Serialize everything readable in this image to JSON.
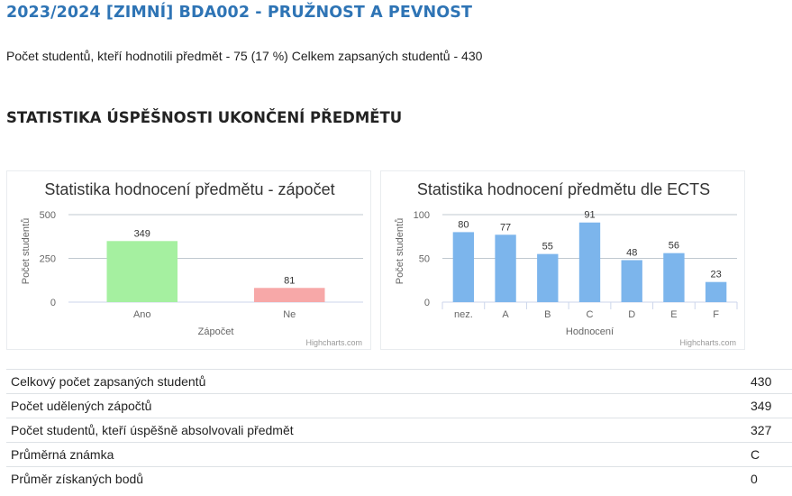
{
  "header": {
    "title": "2023/2024 [ZIMNÍ] BDA002 - PRUŽNOST A PEVNOST",
    "summary": "Počet studentů, kteří hodnotili předmět - 75 (17 %) Celkem zapsaných studentů - 430"
  },
  "section_title": "STATISTIKA ÚSPĚŠNOSTI UKONČENÍ PŘEDMĚTU",
  "colors": {
    "title_blue": "#2e74b5",
    "bar_green": "#a5f0a0",
    "bar_red": "#f7a8a8",
    "bar_blue": "#7cb5ec",
    "grid": "#c0c8d0",
    "axis_line": "#ccd6eb"
  },
  "chart_data": [
    {
      "type": "bar",
      "title": "Statistika hodnocení předmětu - zápočet",
      "xlabel": "Zápočet",
      "ylabel": "Počet studentů",
      "categories": [
        "Ano",
        "Ne"
      ],
      "values": [
        349,
        81
      ],
      "bar_colors": [
        "#a5f0a0",
        "#f7a8a8"
      ],
      "ylim": [
        0,
        500
      ],
      "yticks": [
        0,
        250,
        500
      ],
      "grid": true,
      "credits": "Highcharts.com"
    },
    {
      "type": "bar",
      "title": "Statistika hodnocení předmětu dle ECTS",
      "xlabel": "Hodnocení",
      "ylabel": "Počet studentů",
      "categories": [
        "nez.",
        "A",
        "B",
        "C",
        "D",
        "E",
        "F"
      ],
      "values": [
        80,
        77,
        55,
        91,
        48,
        56,
        23
      ],
      "bar_colors": [
        "#7cb5ec",
        "#7cb5ec",
        "#7cb5ec",
        "#7cb5ec",
        "#7cb5ec",
        "#7cb5ec",
        "#7cb5ec"
      ],
      "ylim": [
        0,
        100
      ],
      "yticks": [
        0,
        50,
        100
      ],
      "grid": true,
      "credits": "Highcharts.com"
    }
  ],
  "stats_table": {
    "rows": [
      {
        "label": "Celkový počet zapsaných studentů",
        "value": "430"
      },
      {
        "label": "Počet udělených zápočtů",
        "value": "349"
      },
      {
        "label": "Počet studentů, kteří úspěšně absolvovali předmět",
        "value": "327"
      },
      {
        "label": "Průměrná známka",
        "value": "C"
      },
      {
        "label": "Průměr získaných bodů",
        "value": "0"
      }
    ]
  }
}
